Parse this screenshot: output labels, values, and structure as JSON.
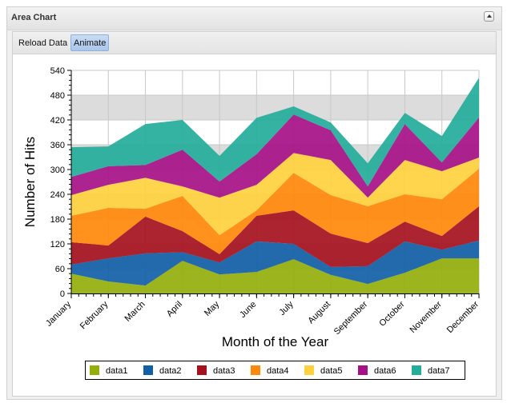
{
  "panel": {
    "title": "Area Chart",
    "collapse_icon": "triangle-up-icon"
  },
  "toolbar": {
    "reload_label": "Reload Data",
    "animate_label": "Animate"
  },
  "chart_data": {
    "type": "area",
    "stacked": true,
    "title": "",
    "xlabel": "Month of the Year",
    "ylabel": "Number of Hits",
    "ylim": [
      0,
      540
    ],
    "yticks": [
      0,
      60,
      120,
      180,
      240,
      300,
      360,
      420,
      480,
      540
    ],
    "y_minor_step": 12,
    "grid": true,
    "alternating_bands": true,
    "legend_position": "bottom",
    "categories": [
      "January",
      "February",
      "March",
      "April",
      "May",
      "June",
      "July",
      "August",
      "September",
      "October",
      "November",
      "December"
    ],
    "series": [
      {
        "name": "data1",
        "color": "#94ae0a",
        "values": [
          48,
          29,
          19,
          79,
          46,
          52,
          83,
          45,
          23,
          50,
          85,
          85
        ]
      },
      {
        "name": "data2",
        "color": "#115fa6",
        "values": [
          22,
          56,
          78,
          21,
          29,
          74,
          37,
          19,
          43,
          76,
          21,
          43
        ]
      },
      {
        "name": "data3",
        "color": "#a61120",
        "values": [
          54,
          31,
          89,
          51,
          20,
          62,
          81,
          81,
          56,
          48,
          33,
          83
        ]
      },
      {
        "name": "data4",
        "color": "#ff8809",
        "values": [
          64,
          91,
          19,
          85,
          46,
          13,
          91,
          93,
          89,
          66,
          89,
          91
        ]
      },
      {
        "name": "data5",
        "color": "#ffd13e",
        "values": [
          50,
          56,
          75,
          23,
          91,
          62,
          48,
          85,
          21,
          83,
          68,
          27
        ]
      },
      {
        "name": "data6",
        "color": "#a61187",
        "values": [
          44,
          45,
          31,
          89,
          39,
          74,
          93,
          72,
          27,
          87,
          21,
          97
        ]
      },
      {
        "name": "data7",
        "color": "#24ad9a",
        "values": [
          72,
          48,
          99,
          72,
          62,
          88,
          20,
          19,
          56,
          27,
          64,
          96
        ]
      }
    ]
  }
}
